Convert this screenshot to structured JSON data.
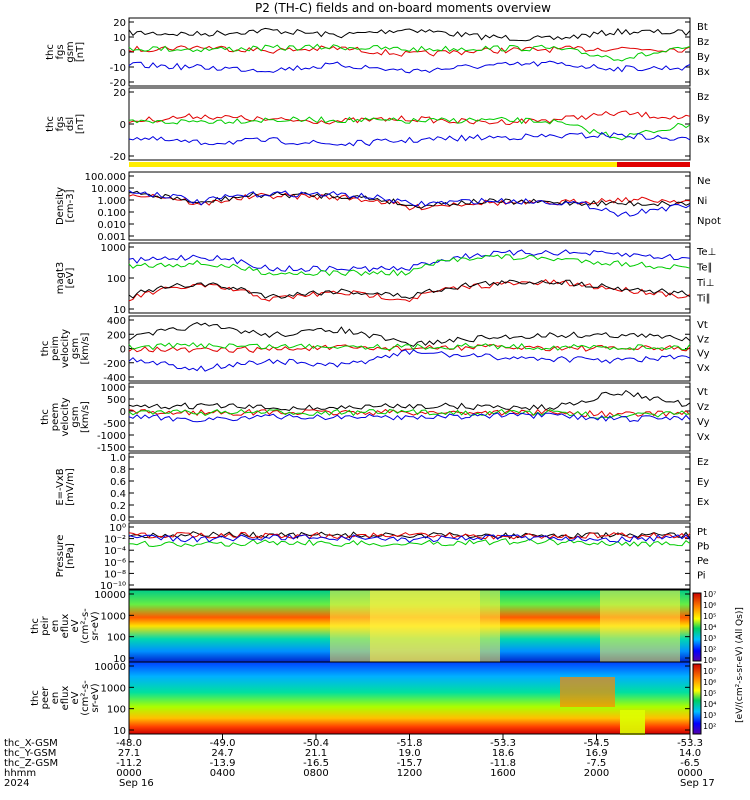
{
  "title": "P2 (TH-C) fields and on-board moments overview",
  "colors": {
    "black": "#000000",
    "red": "#e00000",
    "green": "#00cc00",
    "blue": "#0000e0",
    "yellow": "#ffee00",
    "bar_red": "#e00000"
  },
  "panels": [
    {
      "id": "fgs_gsm",
      "ylabel_lines": [
        "thc",
        "fgs",
        "gsm",
        "[nT]"
      ],
      "yticks": [
        "20",
        "10",
        "0",
        "-10",
        "-20"
      ],
      "legend": [
        {
          "text": "Bt",
          "color": "#000000"
        },
        {
          "text": "Bz",
          "color": "#e00000"
        },
        {
          "text": "By",
          "color": "#00cc00"
        },
        {
          "text": "Bx",
          "color": "#0000e0"
        }
      ]
    },
    {
      "id": "fgs_dsl",
      "ylabel_lines": [
        "thc",
        "fgs",
        "dsl",
        "[nT]"
      ],
      "yticks": [
        "20",
        "0",
        "-20"
      ],
      "legend": [
        {
          "text": "Bz",
          "color": "#e00000"
        },
        {
          "text": "By",
          "color": "#00cc00"
        },
        {
          "text": "Bx",
          "color": "#000000"
        }
      ]
    },
    {
      "id": "density",
      "ylabel_lines": [
        "Density",
        "[cm-3]"
      ],
      "yticks": [
        "100.000",
        "10.000",
        "1.000",
        "0.100",
        "0.010",
        "0.001"
      ],
      "legend": [
        {
          "text": "Ne",
          "color": "#e00000"
        },
        {
          "text": "Ni",
          "color": "#000000"
        },
        {
          "text": "Npot",
          "color": "#0000e0"
        }
      ]
    },
    {
      "id": "temp",
      "ylabel_lines": [
        "magt3",
        "[eV]"
      ],
      "yticks": [
        "1000",
        "100",
        "10"
      ],
      "legend": [
        {
          "text": "Te⊥",
          "color": "#e00000"
        },
        {
          "text": "Te∥",
          "color": "#000000"
        },
        {
          "text": "Ti⊥",
          "color": "#0000e0"
        },
        {
          "text": "Ti∥",
          "color": "#00cc00"
        }
      ]
    },
    {
      "id": "peim_vel",
      "ylabel_lines": [
        "thc",
        "peim",
        "velocity",
        "gsm",
        "[km/s]"
      ],
      "yticks": [
        "400",
        "200",
        "0",
        "-200",
        "-400"
      ],
      "legend": [
        {
          "text": "Vt",
          "color": "#000000"
        },
        {
          "text": "Vz",
          "color": "#e00000"
        },
        {
          "text": "Vy",
          "color": "#00cc00"
        },
        {
          "text": "Vx",
          "color": "#0000e0"
        }
      ]
    },
    {
      "id": "peem_vel",
      "ylabel_lines": [
        "thc",
        "peem",
        "velocity",
        "gsm",
        "[km/s]"
      ],
      "yticks": [
        "1000",
        "500",
        "0",
        "-500",
        "-1000",
        "-1500"
      ],
      "legend": [
        {
          "text": "Vt",
          "color": "#000000"
        },
        {
          "text": "Vz",
          "color": "#e00000"
        },
        {
          "text": "Vy",
          "color": "#00cc00"
        },
        {
          "text": "Vx",
          "color": "#0000e0"
        }
      ]
    },
    {
      "id": "efield",
      "ylabel_lines": [
        "E=-VxB",
        "[mV/m]"
      ],
      "yticks": [
        "1.0",
        "0.8",
        "0.6",
        "0.4",
        "0.2",
        "0.0"
      ],
      "legend": [
        {
          "text": "Ez",
          "color": "#e00000"
        },
        {
          "text": "Ey",
          "color": "#00cc00"
        },
        {
          "text": "Ex",
          "color": "#0000e0"
        }
      ]
    },
    {
      "id": "pressure",
      "ylabel_lines": [
        "Pressure",
        "[nPa]"
      ],
      "yticks": [
        "10⁰",
        "10⁻²",
        "10⁻⁴",
        "10⁻⁶",
        "10⁻⁸",
        "10⁻¹⁰"
      ],
      "legend": [
        {
          "text": "Pt",
          "color": "#000000"
        },
        {
          "text": "Pb",
          "color": "#e00000"
        },
        {
          "text": "Pe",
          "color": "#00cc00"
        },
        {
          "text": "Pi",
          "color": "#0000e0"
        }
      ]
    },
    {
      "id": "peir_spec",
      "ylabel_lines": [
        "thc",
        "peir",
        "en",
        "eflux",
        "eV",
        "(cm²-s-",
        "sr-eV)"
      ],
      "yticks": [
        "10000",
        "1000",
        "100",
        "10"
      ],
      "legend": []
    },
    {
      "id": "peer_spec",
      "ylabel_lines": [
        "thc",
        "peer",
        "en",
        "eflux",
        "eV",
        "(cm²-s-",
        "sr-eV)"
      ],
      "yticks": [
        "10000",
        "1000",
        "100",
        "10"
      ],
      "legend": []
    }
  ],
  "colorbar": {
    "ticks": [
      "10⁷",
      "10⁶",
      "10⁵",
      "10⁴",
      "10³",
      "10²",
      "10⁸",
      "10⁷",
      "10⁶",
      "10⁵",
      "10⁴",
      "10³",
      "10²"
    ],
    "label": "[eV/(cm²-s-sr-eV) (All Qs)]"
  },
  "xaxis": {
    "rows": [
      {
        "label": "thc_X-GSM",
        "values": [
          "-48.0",
          "-49.0",
          "-50.4",
          "-51.8",
          "-53.3",
          "-54.5",
          "-53.3"
        ]
      },
      {
        "label": "thc_Y-GSM",
        "values": [
          "27.1",
          "24.7",
          "21.1",
          "19.0",
          "18.6",
          "16.9",
          "14.0"
        ]
      },
      {
        "label": "thc_Z-GSM",
        "values": [
          "-11.2",
          "-13.9",
          "-16.5",
          "-15.7",
          "-11.8",
          "-7.5",
          "-6.5"
        ]
      },
      {
        "label": "hhmm",
        "values": [
          "0000",
          "0400",
          "0800",
          "1200",
          "1600",
          "2000",
          "0000"
        ]
      }
    ],
    "year": "2024",
    "date_start": "Sep 16",
    "date_end": "Sep 17"
  },
  "chart_data": [
    {
      "type": "line",
      "panel": "fgs_gsm",
      "ylim": [
        -25,
        25
      ],
      "series": [
        {
          "name": "Bt",
          "values": [
            15,
            14,
            17,
            13,
            18,
            12,
            10,
            16,
            15
          ]
        },
        {
          "name": "Bz",
          "values": [
            2,
            4,
            1,
            3,
            -2,
            1,
            2,
            3,
            2
          ]
        },
        {
          "name": "By",
          "values": [
            3,
            2,
            3,
            4,
            2,
            3,
            3,
            -5,
            3
          ]
        },
        {
          "name": "Bx",
          "values": [
            -10,
            -12,
            -14,
            -10,
            -15,
            -11,
            -9,
            -13,
            -12
          ]
        }
      ]
    },
    {
      "type": "line",
      "panel": "fgs_dsl",
      "ylim": [
        -25,
        25
      ],
      "series": [
        {
          "name": "Bz",
          "values": [
            2,
            6,
            3,
            2,
            4,
            1,
            3,
            8,
            4
          ]
        },
        {
          "name": "By",
          "values": [
            1,
            2,
            3,
            3,
            2,
            3,
            2,
            -10,
            0
          ]
        },
        {
          "name": "Bx",
          "values": [
            -10,
            -14,
            -12,
            -15,
            -12,
            -10,
            -9,
            -8,
            -12
          ]
        }
      ]
    },
    {
      "type": "line",
      "panel": "density",
      "ylim": [
        0.001,
        100
      ],
      "series": [
        {
          "name": "Ne",
          "values": [
            3,
            0.3,
            2,
            1.5,
            0.2,
            0.6,
            0.5,
            1,
            0.8
          ]
        },
        {
          "name": "Ni",
          "values": [
            3,
            0.4,
            2.5,
            2,
            0.3,
            0.7,
            0.6,
            0.5,
            0.5
          ]
        },
        {
          "name": "Npot",
          "values": [
            4,
            0.5,
            3,
            2.5,
            0.4,
            0.8,
            0.7,
            0.05,
            0.3
          ]
        }
      ]
    },
    {
      "type": "line",
      "panel": "temp",
      "ylim": [
        5,
        3000
      ],
      "series": [
        {
          "name": "Te⊥",
          "values": [
            15,
            60,
            15,
            30,
            15,
            60,
            80,
            40,
            20
          ]
        },
        {
          "name": "Te∥",
          "values": [
            20,
            70,
            20,
            35,
            20,
            70,
            90,
            45,
            25
          ]
        },
        {
          "name": "Ti⊥",
          "values": [
            600,
            1000,
            300,
            300,
            300,
            1200,
            1500,
            1200,
            800
          ]
        },
        {
          "name": "Ti∥",
          "values": [
            400,
            500,
            200,
            200,
            200,
            1000,
            800,
            500,
            300
          ]
        }
      ]
    },
    {
      "type": "line",
      "panel": "peim_vel",
      "ylim": [
        -450,
        450
      ],
      "series": [
        {
          "name": "Vt",
          "values": [
            150,
            350,
            200,
            280,
            60,
            150,
            200,
            200,
            150
          ]
        },
        {
          "name": "Vz",
          "values": [
            0,
            -30,
            -10,
            10,
            0,
            20,
            10,
            0,
            0
          ]
        },
        {
          "name": "Vy",
          "values": [
            20,
            50,
            30,
            40,
            20,
            40,
            20,
            20,
            20
          ]
        },
        {
          "name": "Vx",
          "values": [
            -150,
            -300,
            -180,
            -260,
            -50,
            -120,
            -150,
            -180,
            -120
          ]
        }
      ]
    },
    {
      "type": "line",
      "panel": "peem_vel",
      "ylim": [
        -1600,
        1200
      ],
      "series": [
        {
          "name": "Vt",
          "values": [
            200,
            300,
            200,
            200,
            300,
            250,
            200,
            900,
            300
          ]
        },
        {
          "name": "Vz",
          "values": [
            0,
            0,
            0,
            0,
            0,
            0,
            0,
            -100,
            0
          ]
        },
        {
          "name": "Vy",
          "values": [
            0,
            0,
            0,
            0,
            0,
            0,
            0,
            -200,
            0
          ]
        },
        {
          "name": "Vx",
          "values": [
            -200,
            -300,
            -200,
            -200,
            -200,
            -150,
            -150,
            -300,
            -200
          ]
        }
      ]
    },
    {
      "type": "line",
      "panel": "pressure",
      "ylim": [
        1e-10,
        1
      ],
      "series": [
        {
          "name": "Pt",
          "values": [
            0.02,
            0.03,
            0.02,
            0.025,
            0.02,
            0.02,
            0.02,
            0.02,
            0.02
          ]
        },
        {
          "name": "Pb",
          "values": [
            0.02,
            0.025,
            0.02,
            0.02,
            0.02,
            0.015,
            0.015,
            0.02,
            0.02
          ]
        },
        {
          "name": "Pe",
          "values": [
            0.001,
            0.0005,
            0.002,
            0.001,
            0.0008,
            0.002,
            0.002,
            0.001,
            0.001
          ]
        },
        {
          "name": "Pi",
          "values": [
            0.01,
            0.005,
            0.01,
            0.01,
            0.004,
            0.01,
            0.01,
            0.005,
            0.01
          ]
        }
      ]
    },
    {
      "type": "heatmap",
      "panel": "peir_spec",
      "ylim": [
        5,
        30000
      ]
    },
    {
      "type": "heatmap",
      "panel": "peer_spec",
      "ylim": [
        5,
        30000
      ]
    }
  ]
}
